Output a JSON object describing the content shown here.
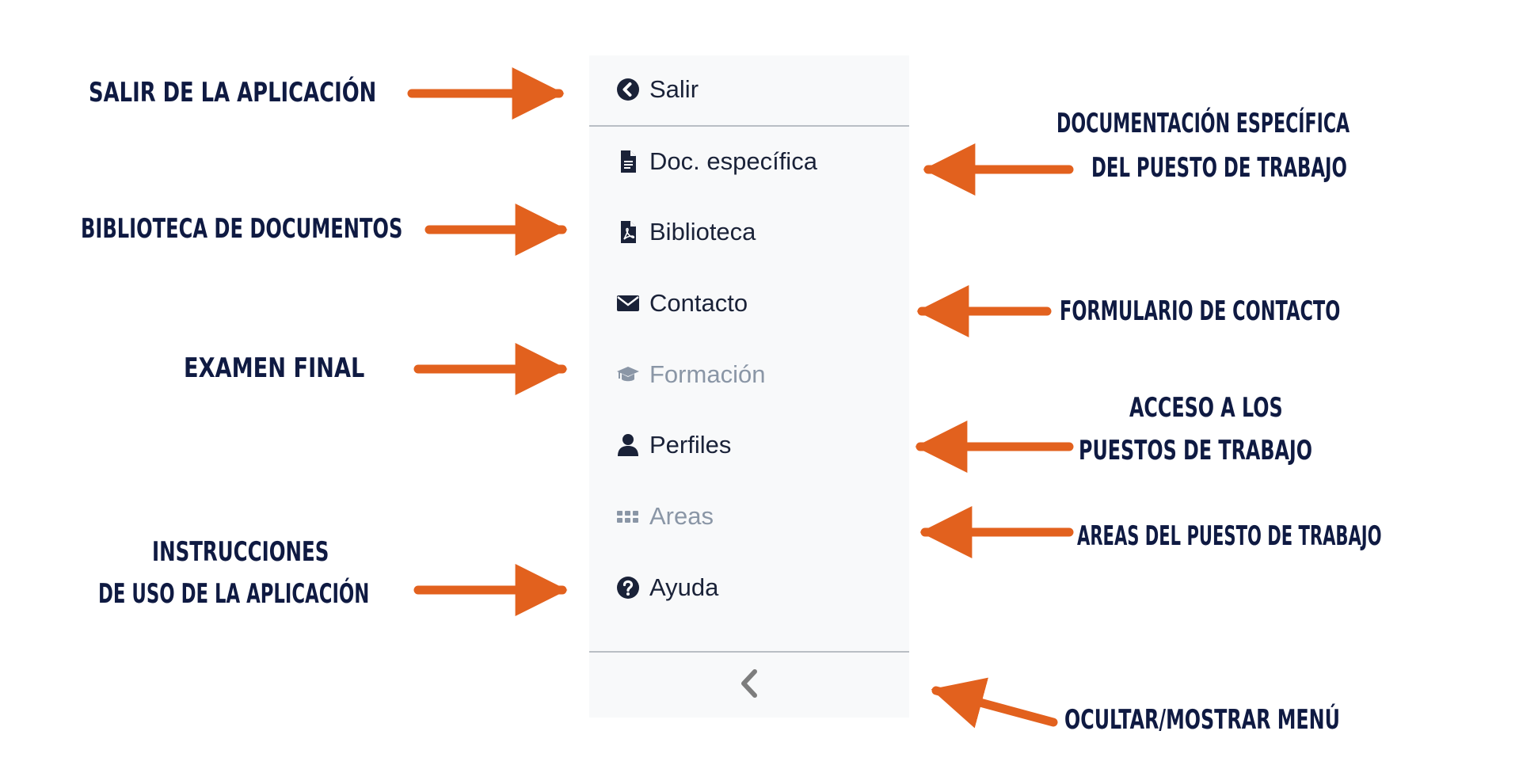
{
  "menu": {
    "items": [
      {
        "label": "Salir",
        "icon": "chevron-circle-left-icon",
        "disabled": false
      },
      {
        "label": "Doc. específica",
        "icon": "file-text-icon",
        "disabled": false
      },
      {
        "label": "Biblioteca",
        "icon": "file-pdf-icon",
        "disabled": false
      },
      {
        "label": "Contacto",
        "icon": "envelope-icon",
        "disabled": false
      },
      {
        "label": "Formación",
        "icon": "graduation-cap-icon",
        "disabled": true
      },
      {
        "label": "Perfiles",
        "icon": "user-icon",
        "disabled": false
      },
      {
        "label": "Areas",
        "icon": "grid-dots-icon",
        "disabled": true
      },
      {
        "label": "Ayuda",
        "icon": "question-circle-icon",
        "disabled": false
      }
    ],
    "collapse_icon": "chevron-left-icon"
  },
  "annotations": {
    "salir": "SALIR DE LA APLICACIÓN",
    "biblioteca": "BIBLIOTECA DE DOCUMENTOS",
    "examen": "EXAMEN FINAL",
    "instrucciones_1": "INSTRUCCIONES",
    "instrucciones_2": "DE USO DE LA APLICACIÓN",
    "documentacion_1": "DOCUMENTACIÓN ESPECÍFICA",
    "documentacion_2": "DEL PUESTO DE TRABAJO",
    "formulario": "FORMULARIO DE CONTACTO",
    "acceso_1": "ACCESO A LOS",
    "acceso_2": "PUESTOS DE TRABAJO",
    "areas": "AREAS DEL PUESTO DE TRABAJO",
    "ocultar": "OCULTAR/MOSTRAR MENÚ"
  },
  "colors": {
    "arrow": "#e2611e",
    "annotation_text": "#0f1a42",
    "menu_text": "#1a2238",
    "menu_disabled": "#8a96a6",
    "sidebar_bg": "#f8f9fa",
    "divider": "#b9bec4"
  }
}
